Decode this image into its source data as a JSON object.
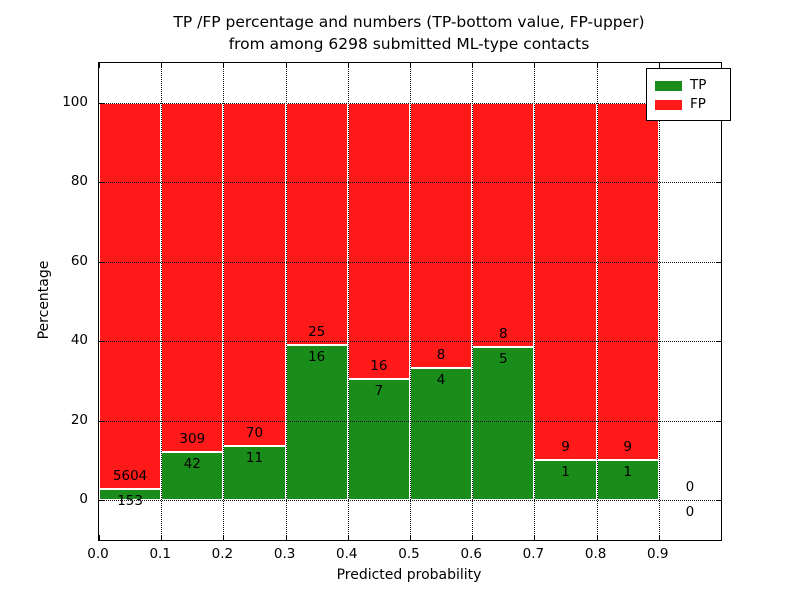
{
  "chart_data": {
    "type": "bar",
    "stacked": true,
    "title_lines": [
      "TP /FP percentage and numbers (TP-bottom value, FP-upper)",
      "from among 6298 submitted ML-type contacts"
    ],
    "xlabel": "Predicted probability",
    "ylabel": "Percentage",
    "xlim": [
      0.0,
      1.0
    ],
    "ylim": [
      -10,
      110
    ],
    "xticks": [
      "0.0",
      "0.1",
      "0.2",
      "0.3",
      "0.4",
      "0.5",
      "0.6",
      "0.7",
      "0.8",
      "0.9"
    ],
    "yticks": [
      "0",
      "20",
      "40",
      "60",
      "80",
      "100"
    ],
    "grid": "dotted",
    "legend_position": "upper right",
    "series": [
      {
        "name": "TP",
        "color": "#1a8c1a"
      },
      {
        "name": "FP",
        "color": "#ff1919"
      }
    ],
    "total_contacts": 6298,
    "bins": [
      {
        "range": "0.0-0.1",
        "tp": 153,
        "fp": 5604,
        "tp_pct": 2.657
      },
      {
        "range": "0.1-0.2",
        "tp": 42,
        "fp": 309,
        "tp_pct": 11.966
      },
      {
        "range": "0.2-0.3",
        "tp": 11,
        "fp": 70,
        "tp_pct": 13.58
      },
      {
        "range": "0.3-0.4",
        "tp": 16,
        "fp": 25,
        "tp_pct": 39.024
      },
      {
        "range": "0.4-0.5",
        "tp": 7,
        "fp": 16,
        "tp_pct": 30.435
      },
      {
        "range": "0.5-0.6",
        "tp": 4,
        "fp": 8,
        "tp_pct": 33.333
      },
      {
        "range": "0.6-0.7",
        "tp": 5,
        "fp": 8,
        "tp_pct": 38.462
      },
      {
        "range": "0.7-0.8",
        "tp": 1,
        "fp": 9,
        "tp_pct": 10.0
      },
      {
        "range": "0.8-0.9",
        "tp": 1,
        "fp": 9,
        "tp_pct": 10.0
      },
      {
        "range": "0.9-1.0",
        "tp": 0,
        "fp": 0,
        "tp_pct": null
      }
    ]
  }
}
